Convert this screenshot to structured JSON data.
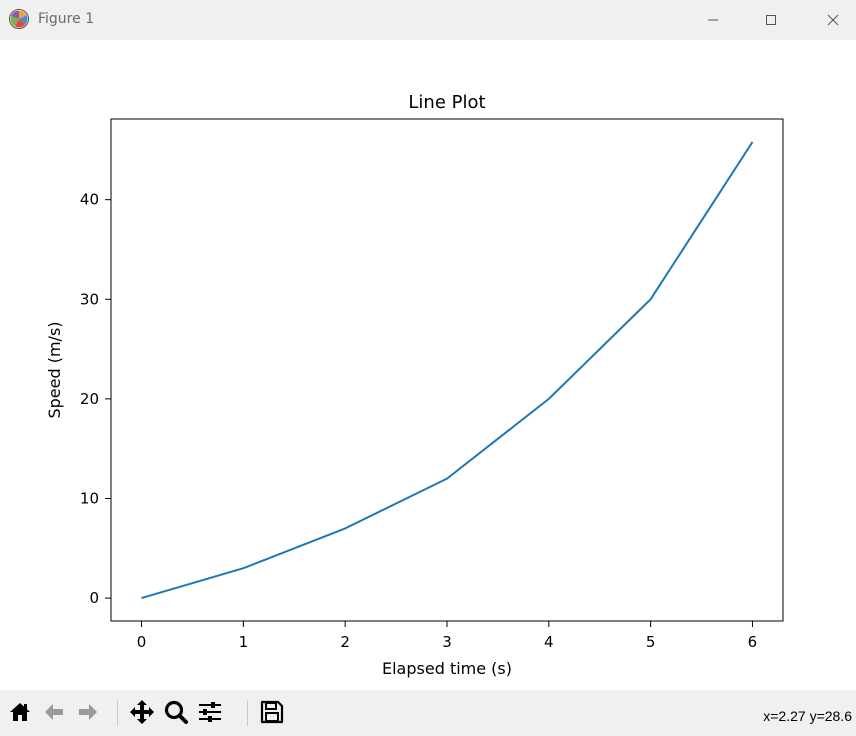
{
  "window": {
    "title": "Figure 1",
    "icon": "matplotlib-logo-icon"
  },
  "toolbar": {
    "buttons": [
      {
        "name": "home-icon",
        "label": "Home"
      },
      {
        "name": "back-arrow-icon",
        "label": "Back"
      },
      {
        "name": "forward-arrow-icon",
        "label": "Forward"
      },
      {
        "name": "pan-move-icon",
        "label": "Pan"
      },
      {
        "name": "zoom-magnifier-icon",
        "label": "Zoom"
      },
      {
        "name": "configure-subplots-icon",
        "label": "Subplots"
      },
      {
        "name": "save-floppy-icon",
        "label": "Save"
      }
    ],
    "coords": "x=2.27 y=28.6"
  },
  "colors": {
    "line": "#1f77b4",
    "titlebar": "#f0f0f0",
    "toolbar": "#f0f0f0"
  },
  "chart_data": {
    "type": "line",
    "title": "Line Plot",
    "xlabel": "Elapsed time (s)",
    "ylabel": "Speed (m/s)",
    "x": [
      0,
      1,
      2,
      3,
      4,
      5,
      6
    ],
    "series": [
      {
        "values": [
          0,
          3,
          7,
          12,
          20,
          30,
          45.8
        ]
      }
    ],
    "xlim": [
      -0.3,
      6.3
    ],
    "ylim": [
      -2.3,
      48.1
    ],
    "xticks": [
      "0",
      "1",
      "2",
      "3",
      "4",
      "5",
      "6"
    ],
    "yticks": [
      "0",
      "10",
      "20",
      "30",
      "40"
    ],
    "grid": false
  }
}
